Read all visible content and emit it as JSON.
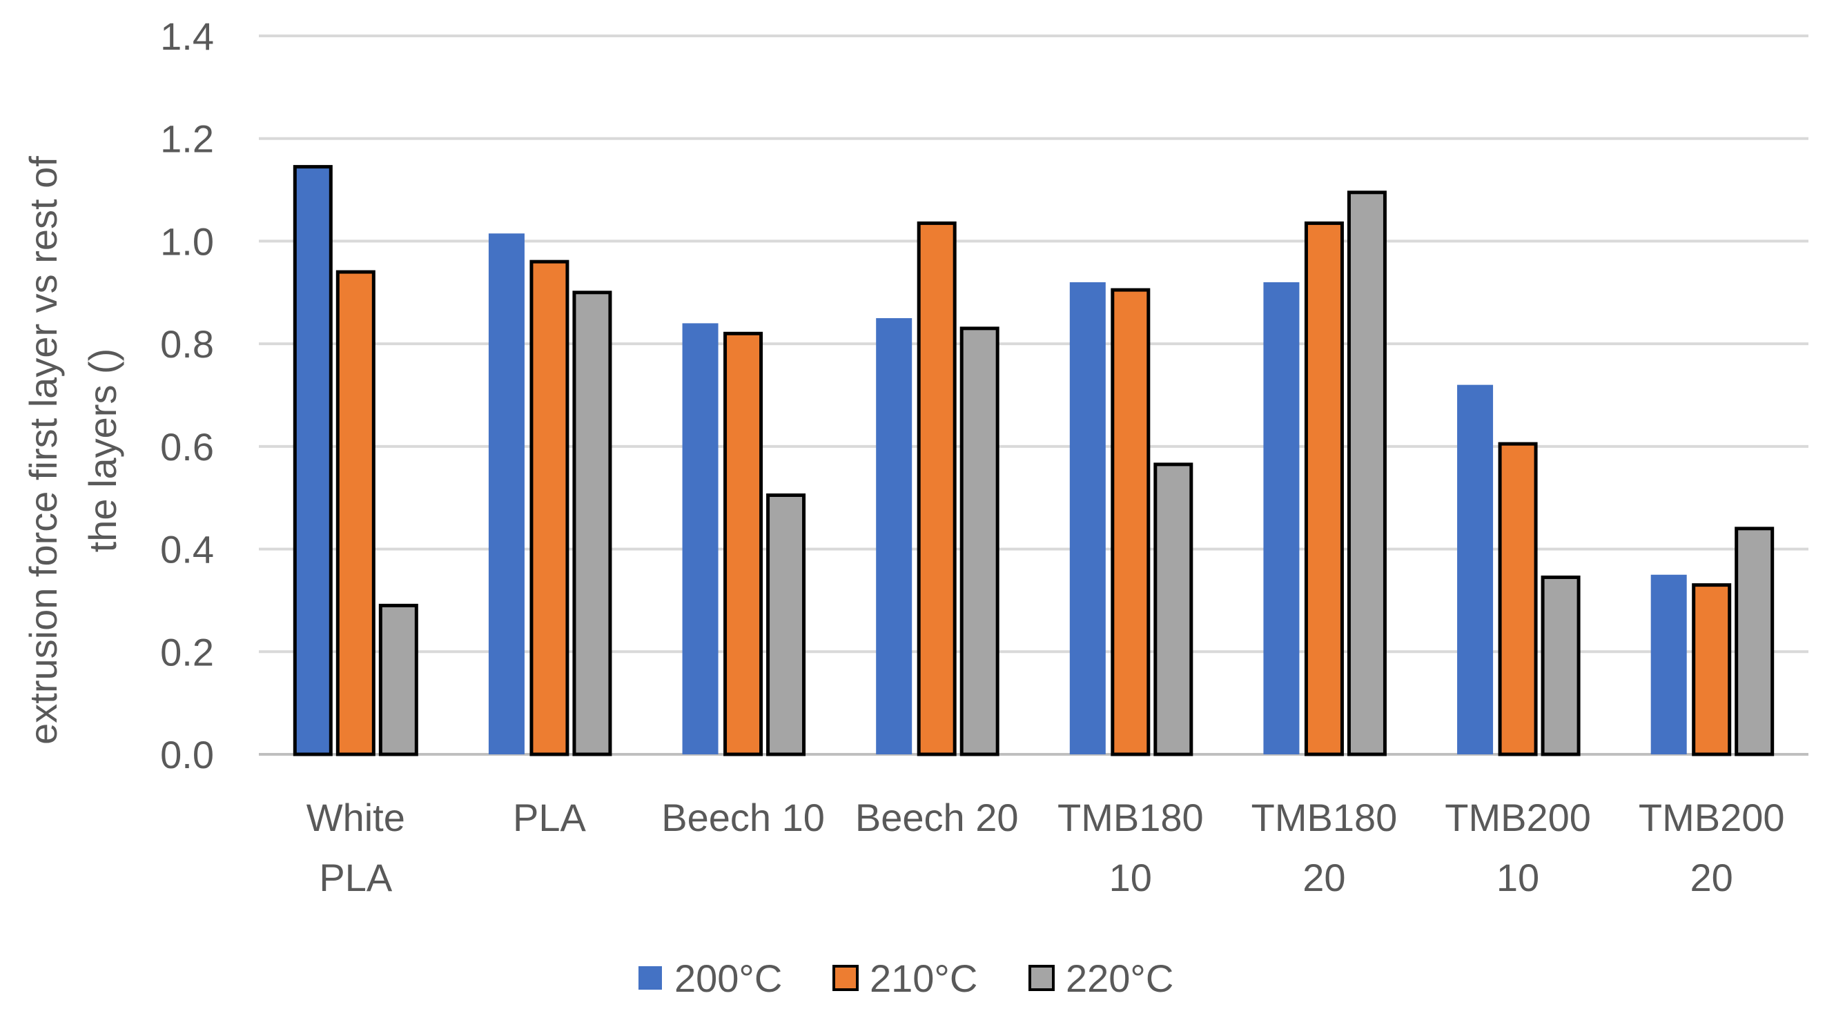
{
  "chart_data": {
    "type": "bar",
    "title": "",
    "xlabel": "",
    "ylabel_lines": [
      "extrusion force first layer vs rest of",
      "the layers ()"
    ],
    "ylim": [
      0,
      1.4
    ],
    "yticks": [
      0.0,
      0.2,
      0.4,
      0.6,
      0.8,
      1.0,
      1.2,
      1.4
    ],
    "ytick_labels": [
      "0.0",
      "0.2",
      "0.4",
      "0.6",
      "0.8",
      "1.0",
      "1.2",
      "1.4"
    ],
    "grid": true,
    "legend": "bottom",
    "categories": [
      [
        "White",
        "PLA"
      ],
      [
        "PLA"
      ],
      [
        "Beech 10"
      ],
      [
        "Beech 20"
      ],
      [
        "TMB180",
        "10"
      ],
      [
        "TMB180",
        "20"
      ],
      [
        "TMB200",
        "10"
      ],
      [
        "TMB200",
        "20"
      ]
    ],
    "series": [
      {
        "name": "200°C",
        "color": "#4472C4",
        "values": [
          1.145,
          1.015,
          0.84,
          0.85,
          0.92,
          0.92,
          0.72,
          0.35
        ]
      },
      {
        "name": "210°C",
        "color": "#ED7D31",
        "values": [
          0.94,
          0.96,
          0.82,
          1.035,
          0.905,
          1.035,
          0.605,
          0.33
        ]
      },
      {
        "name": "220°C",
        "color": "#A5A5A5",
        "values": [
          0.29,
          0.9,
          0.505,
          0.83,
          0.565,
          1.095,
          0.345,
          0.44
        ]
      }
    ],
    "outlined_bars": [
      [
        true,
        true,
        true
      ],
      [
        false,
        true,
        true
      ],
      [
        false,
        true,
        true
      ],
      [
        false,
        true,
        true
      ],
      [
        false,
        true,
        true
      ],
      [
        false,
        true,
        true
      ],
      [
        false,
        true,
        true
      ],
      [
        false,
        true,
        true
      ]
    ]
  }
}
